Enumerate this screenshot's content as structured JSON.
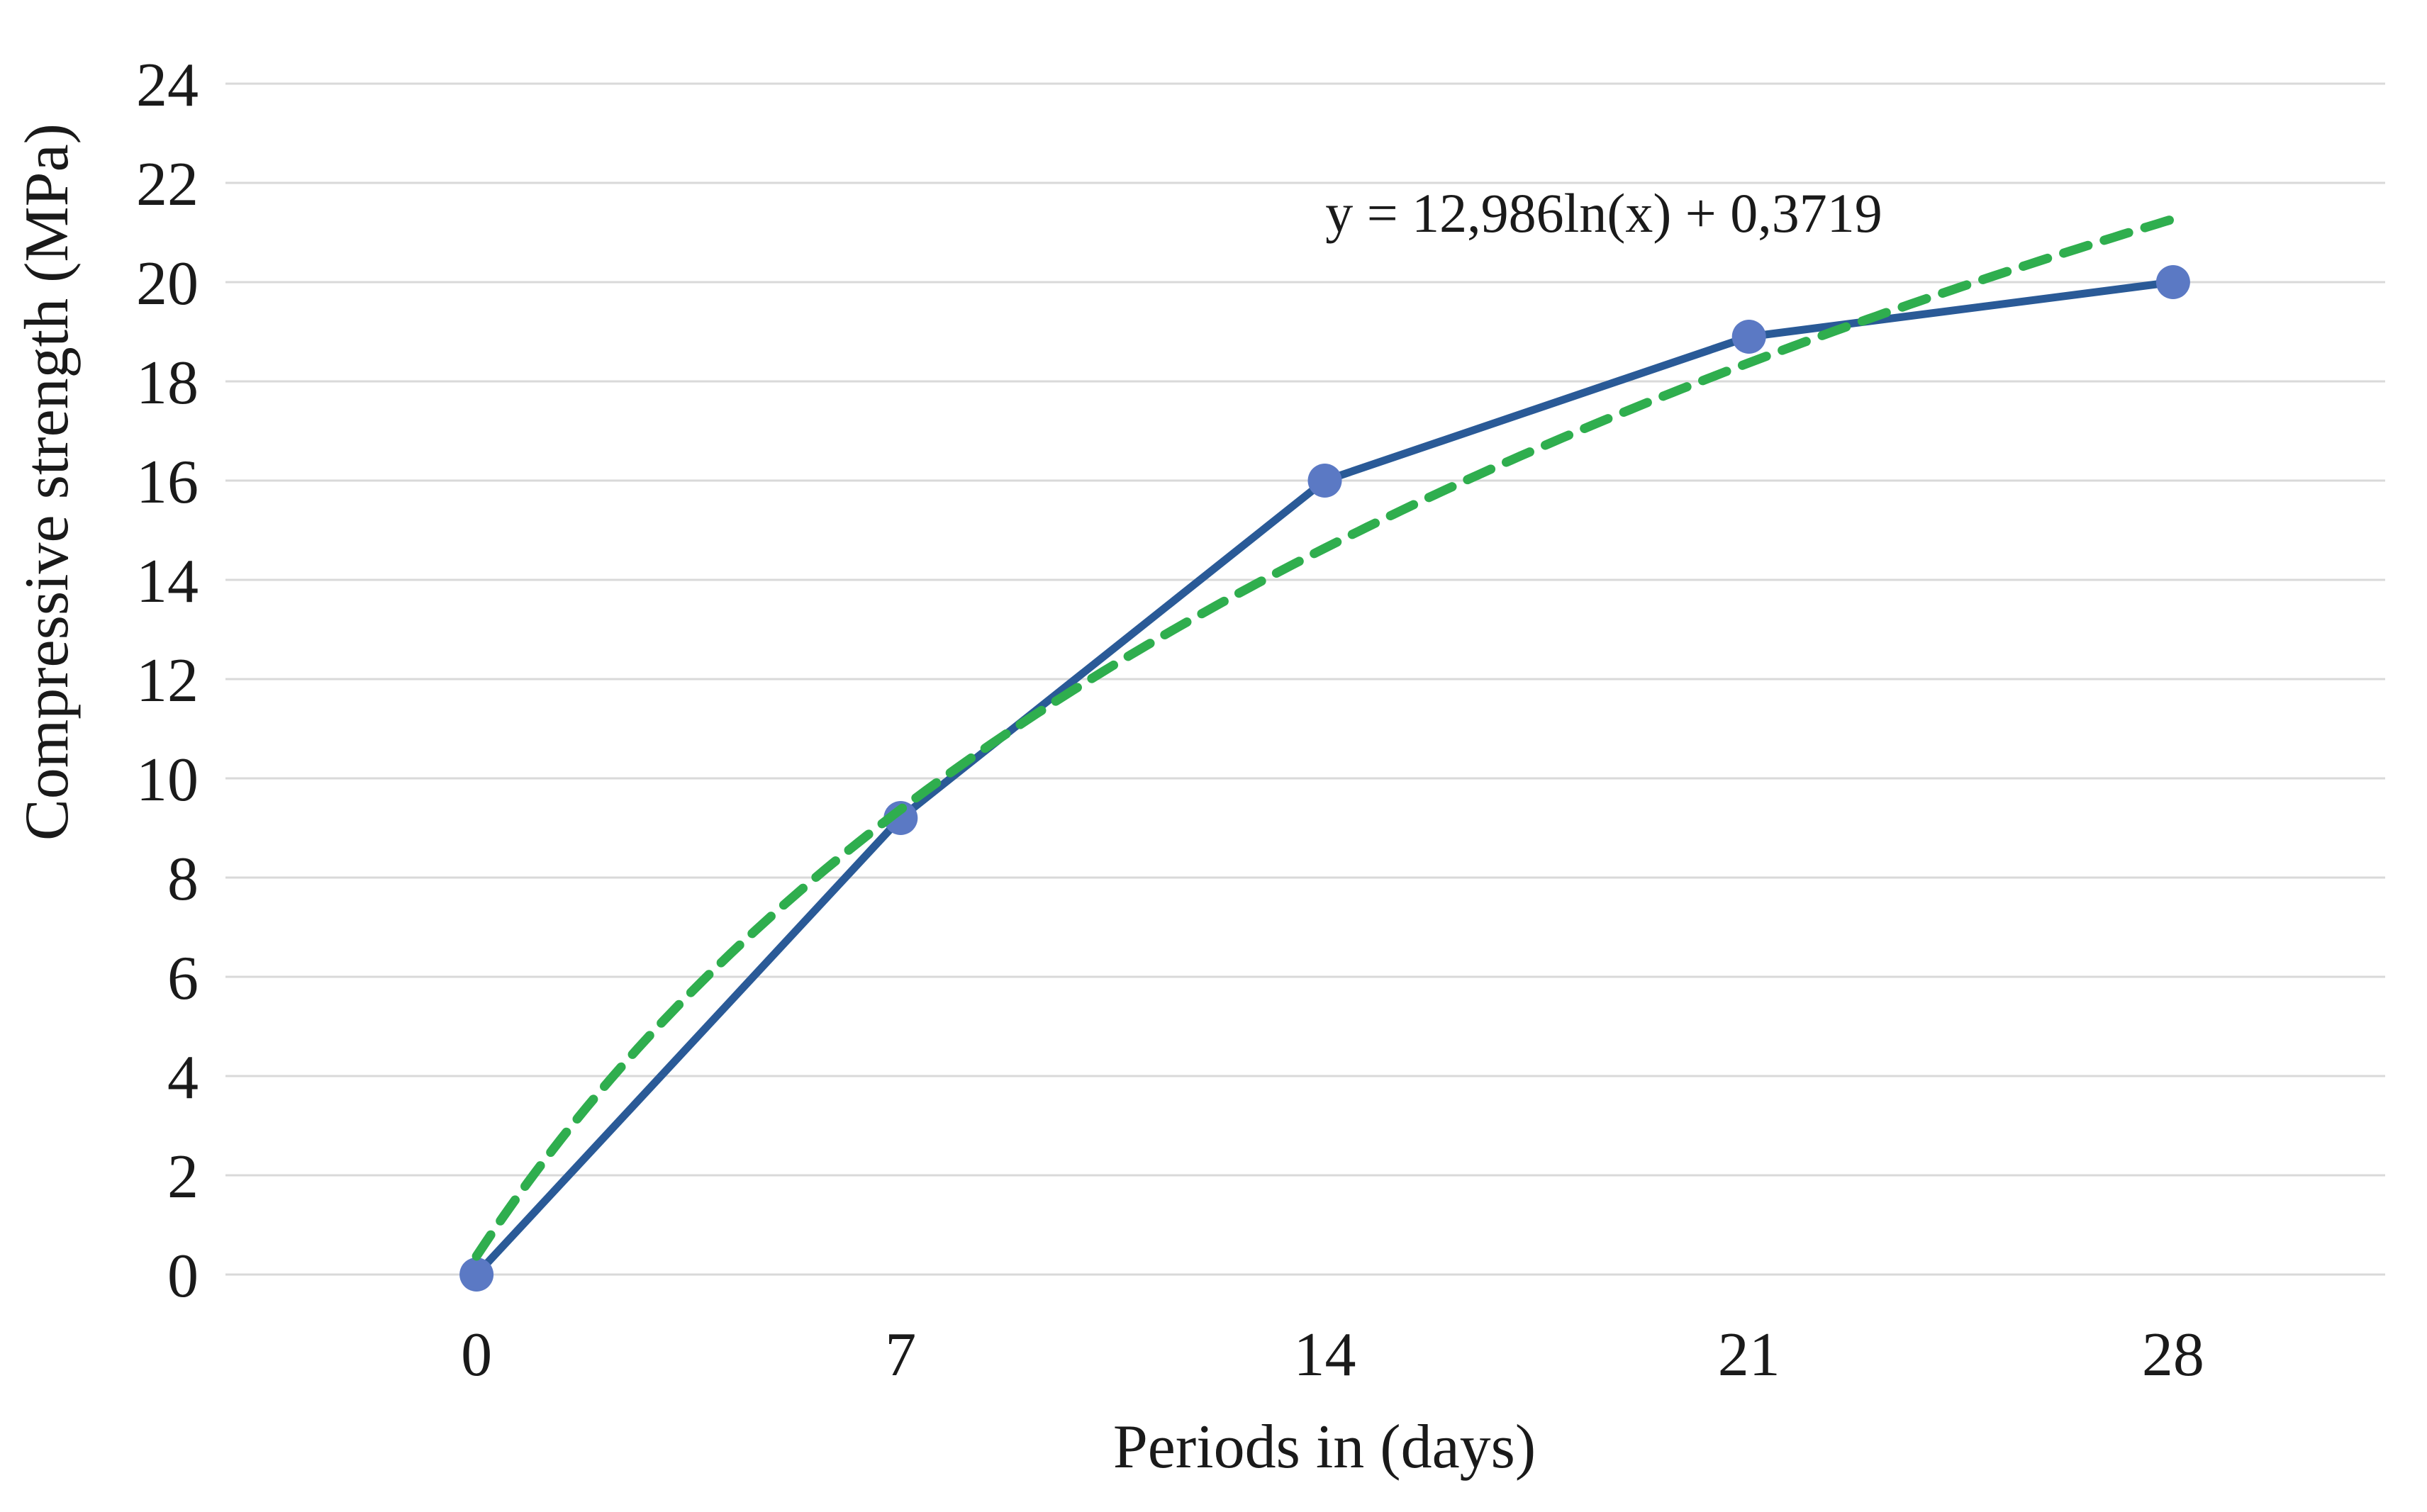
{
  "chart_data": {
    "type": "line",
    "title": "",
    "xlabel": "Periods in (days)",
    "ylabel": "Compressive strength (MPa)",
    "categories": [
      0,
      7,
      14,
      21,
      28
    ],
    "series": [
      {
        "name": "Compressive strength",
        "values": [
          0,
          9.2,
          16,
          18.9,
          20
        ]
      }
    ],
    "trendline": {
      "type": "logarithmic",
      "equation_label": "y = 12,986ln(x) + 0,3719",
      "a": 12.986,
      "b": 0.3719,
      "x_basis": "category index 1..5"
    },
    "ylim": [
      0,
      24
    ],
    "ytick_step": 2,
    "xtick_labels": [
      "0",
      "7",
      "14",
      "21",
      "28"
    ],
    "grid": "horizontal",
    "legend": "none",
    "colors": {
      "series_line": "#2a5a97",
      "marker": "#5b79c4",
      "trendline": "#2fae4e",
      "gridline": "#d9d9d9",
      "text": "#1a1a1a"
    }
  }
}
